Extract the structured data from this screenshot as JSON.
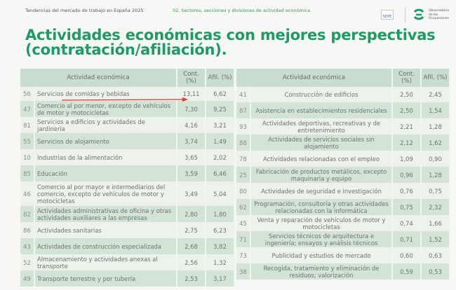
{
  "header": {
    "left": "Tendencias del mercado de trabajo en España 2025",
    "section": "02. Sectores, secciones y divisiones de actividad económica",
    "sepe_logo": "SEPE",
    "observatorio_logo": "Observatorio de las Ocupaciones"
  },
  "title": "Actividades económicas con mejores perspectivas (contratación/afiliación).",
  "columns": {
    "activity": "Actividad económica",
    "cont": "Cont. (%)",
    "afil": "Afil. (%)"
  },
  "colors": {
    "title": "#1f9a64",
    "header": "#c8dccf",
    "row_alt": "#d3e4d7",
    "arrow": "#e03a2a"
  },
  "left_rows": [
    {
      "code": "56",
      "activity": "Servicios de comidas y bebidas",
      "cont": "13,11",
      "afil": "6,62"
    },
    {
      "code": "47",
      "activity": "Comercio al por menor, excepto de vehículos de motor y motocicletas",
      "cont": "7,30",
      "afil": "9,25"
    },
    {
      "code": "81",
      "activity": "Servicios a edificios y actividades de jardinería",
      "cont": "4,16",
      "afil": "3,21"
    },
    {
      "code": "55",
      "activity": "Servicios de alojamiento",
      "cont": "3,74",
      "afil": "1,49"
    },
    {
      "code": "10",
      "activity": "Industrias de la alimentación",
      "cont": "3,65",
      "afil": "2,02"
    },
    {
      "code": "85",
      "activity": "Educación",
      "cont": "3,59",
      "afil": "6,46"
    },
    {
      "code": "46",
      "activity": "Comercio al por mayor e intermediarios del comercio, excepto de vehículos de motor y motocicletas",
      "cont": "3,49",
      "afil": "5,04"
    },
    {
      "code": "82",
      "activity": "Actividades administrativas de oficina y otras actividades auxiliares a las empresas",
      "cont": "2,80",
      "afil": "1,80"
    },
    {
      "code": "86",
      "activity": "Actividades sanitarias",
      "cont": "2,75",
      "afil": "6,23"
    },
    {
      "code": "43",
      "activity": "Actividades de construcción especializada",
      "cont": "2,68",
      "afil": "3,82"
    },
    {
      "code": "52",
      "activity": "Almacenamiento y actividades anexas al transporte",
      "cont": "2,56",
      "afil": "1,32"
    },
    {
      "code": "49",
      "activity": "Transporte terrestre y por tubería",
      "cont": "2,53",
      "afil": "3,17"
    }
  ],
  "right_rows": [
    {
      "code": "41",
      "activity": "Construcción de edificios",
      "cont": "2,50",
      "afil": "2,45"
    },
    {
      "code": "87",
      "activity": "Asistencia en establecimientos residenciales",
      "cont": "2,50",
      "afil": "1,54"
    },
    {
      "code": "93",
      "activity": "Actividades deportivas, recreativas y de entretenimiento",
      "cont": "2,21",
      "afil": "1,28"
    },
    {
      "code": "88",
      "activity": "Actividades de servicios sociales sin alojamiento",
      "cont": "2,12",
      "afil": "1,62"
    },
    {
      "code": "78",
      "activity": "Actividades relacionadas con el empleo",
      "cont": "1,09",
      "afil": "0,90"
    },
    {
      "code": "25",
      "activity": "Fabricación de productos metálicos, excepto maquinaria y equipo",
      "cont": "0,96",
      "afil": "1,28"
    },
    {
      "code": "80",
      "activity": "Actividades de seguridad e investigación",
      "cont": "0,76",
      "afil": "0,75"
    },
    {
      "code": "62",
      "activity": "Programación, consultoría y otras actividades relacionadas con la informática",
      "cont": "0,75",
      "afil": "2,32"
    },
    {
      "code": "45",
      "activity": "Venta y reparación de vehículos de motor y motocicletas",
      "cont": "0,74",
      "afil": "1,66"
    },
    {
      "code": "71",
      "activity": "Servicios técnicos de arquitectura e ingeniería; ensayos y análisis técnicos",
      "cont": "0,71",
      "afil": "1,52"
    },
    {
      "code": "73",
      "activity": "Publicidad y estudios de mercado",
      "cont": "0,60",
      "afil": "0,63"
    },
    {
      "code": "38",
      "activity": "Recogida, tratamiento y eliminación de residuos; valorización",
      "cont": "0,59",
      "afil": "0,53"
    }
  ]
}
